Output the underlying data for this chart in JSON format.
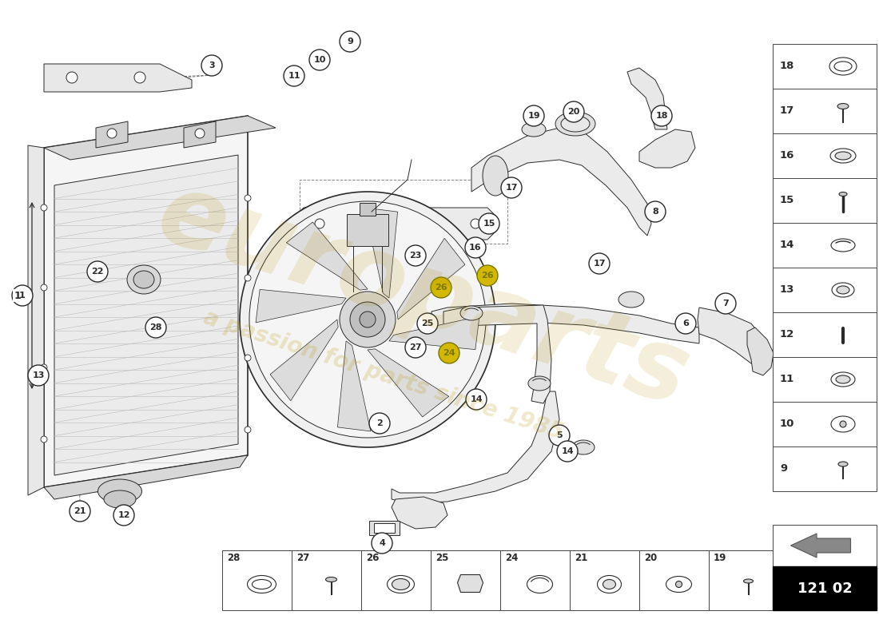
{
  "bg_color": "#ffffff",
  "part_number": "121 02",
  "watermark_text1": "europarts",
  "watermark_text2": "a passion for parts since 1985",
  "right_panel_items": [
    18,
    17,
    16,
    15,
    14,
    13,
    12,
    11,
    10,
    9
  ],
  "bottom_panel_items": [
    28,
    27,
    26,
    25,
    24,
    21,
    20,
    19
  ],
  "accent_color": "#d4b800",
  "line_color": "#2a2a2a",
  "panel_border": "#444444",
  "fill_light": "#f2f2f2",
  "fill_med": "#e0e0e0",
  "fill_dark": "#cccccc"
}
